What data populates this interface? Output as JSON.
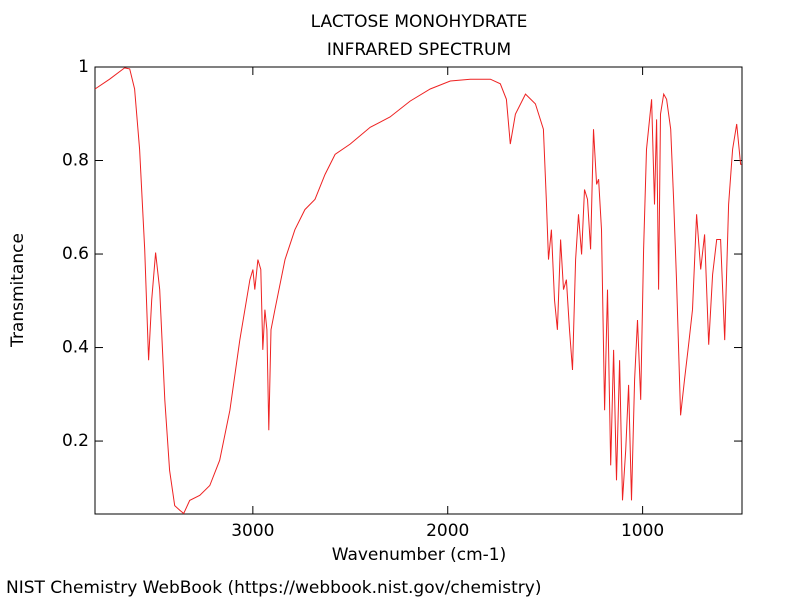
{
  "chart_data": {
    "type": "line",
    "title": "LACTOSE MONOHYDRATE",
    "subtitle": "INFRARED SPECTRUM",
    "x_label": "Wavenumber (cm-1)",
    "y_label": "Transmitance",
    "source": "NIST Chemistry WebBook (https://webbook.nist.gov/chemistry)",
    "color": "#ee2222",
    "xlim": [
      3810,
      490
    ],
    "xticks": [
      3000,
      2000,
      1000
    ],
    "ylim": [
      0.044,
      1.0
    ],
    "yticks": [
      0.2,
      0.4,
      0.6,
      0.8,
      1
    ],
    "x": [
      3810,
      3735,
      3658,
      3632,
      3607,
      3581,
      3555,
      3535,
      3519,
      3499,
      3478,
      3452,
      3427,
      3401,
      3375,
      3355,
      3324,
      3272,
      3221,
      3170,
      3118,
      3067,
      3015,
      3000,
      2990,
      2974,
      2959,
      2949,
      2938,
      2928,
      2918,
      2907,
      2887,
      2835,
      2784,
      2733,
      2681,
      2630,
      2578,
      2501,
      2398,
      2296,
      2193,
      2090,
      1987,
      1884,
      1781,
      1730,
      1699,
      1679,
      1653,
      1601,
      1550,
      1509,
      1494,
      1483,
      1468,
      1452,
      1437,
      1421,
      1406,
      1391,
      1375,
      1360,
      1344,
      1329,
      1313,
      1298,
      1283,
      1267,
      1252,
      1236,
      1226,
      1211,
      1195,
      1180,
      1164,
      1149,
      1134,
      1118,
      1103,
      1087,
      1072,
      1057,
      1041,
      1026,
      1010,
      995,
      980,
      954,
      939,
      928,
      918,
      908,
      892,
      877,
      856,
      841,
      826,
      805,
      785,
      764,
      744,
      723,
      702,
      682,
      661,
      641,
      620,
      600,
      579,
      559,
      538,
      517,
      497,
      492
    ],
    "values": [
      0.953,
      0.974,
      0.998,
      0.996,
      0.953,
      0.824,
      0.61,
      0.373,
      0.502,
      0.603,
      0.524,
      0.288,
      0.137,
      0.062,
      0.052,
      0.045,
      0.073,
      0.084,
      0.105,
      0.159,
      0.266,
      0.416,
      0.545,
      0.567,
      0.524,
      0.588,
      0.567,
      0.395,
      0.481,
      0.438,
      0.223,
      0.438,
      0.481,
      0.588,
      0.652,
      0.695,
      0.717,
      0.77,
      0.813,
      0.835,
      0.871,
      0.893,
      0.927,
      0.953,
      0.97,
      0.974,
      0.974,
      0.964,
      0.931,
      0.835,
      0.899,
      0.942,
      0.921,
      0.867,
      0.717,
      0.588,
      0.652,
      0.502,
      0.438,
      0.631,
      0.524,
      0.545,
      0.438,
      0.352,
      0.588,
      0.685,
      0.599,
      0.738,
      0.717,
      0.61,
      0.867,
      0.749,
      0.76,
      0.652,
      0.266,
      0.524,
      0.148,
      0.395,
      0.116,
      0.373,
      0.073,
      0.18,
      0.32,
      0.073,
      0.331,
      0.459,
      0.288,
      0.61,
      0.824,
      0.931,
      0.706,
      0.888,
      0.524,
      0.899,
      0.942,
      0.931,
      0.867,
      0.717,
      0.545,
      0.255,
      0.331,
      0.406,
      0.481,
      0.685,
      0.567,
      0.642,
      0.406,
      0.556,
      0.631,
      0.631,
      0.416,
      0.706,
      0.824,
      0.878,
      0.792,
      0.792
    ]
  }
}
